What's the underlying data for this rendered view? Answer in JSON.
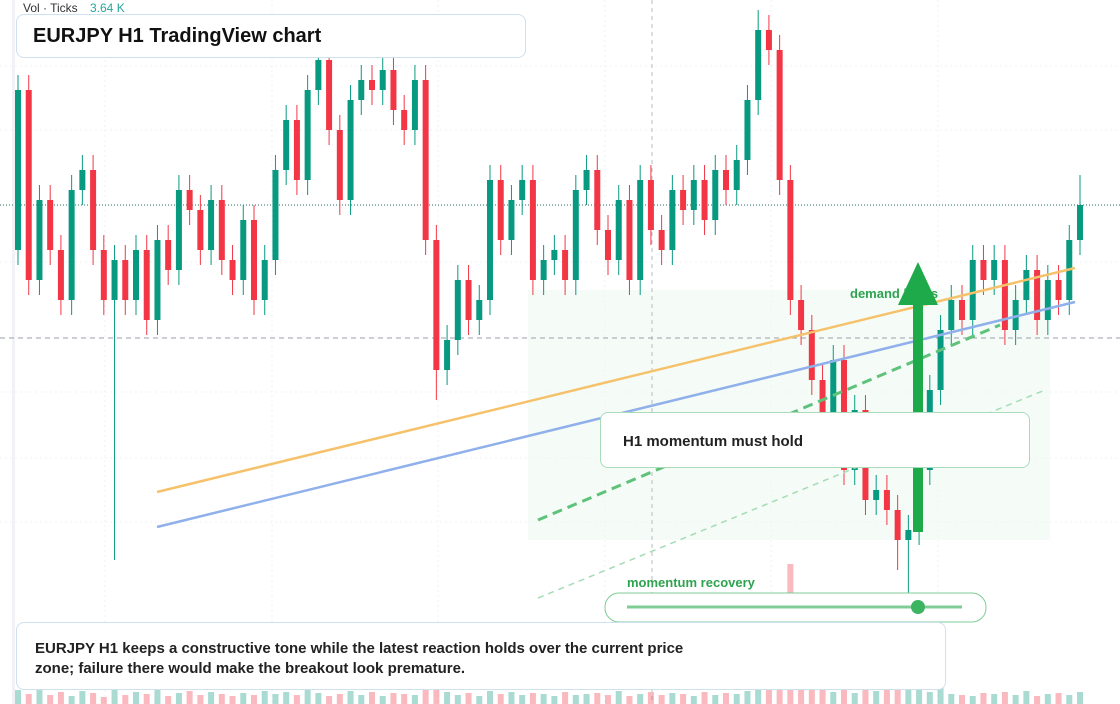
{
  "chart_data": {
    "type": "candlestick",
    "title": "EURJPY H1 TradingView chart",
    "volume_label": "Vol · Ticks",
    "volume_value": "3.64 K",
    "annotations": [
      "demand holds",
      "H1 momentum must hold",
      "momentum recovery"
    ],
    "caption": "EURJPY H1 keeps a constructive tone while the latest reaction holds over the current price zone; failure there would make the breakout look premature.",
    "up_color": "#089981",
    "down_color": "#f23645",
    "ylim": [
      0,
      704
    ],
    "volume_lim": [
      0,
      150
    ],
    "open": [
      454,
      614,
      424,
      504,
      454,
      404,
      514,
      534,
      454,
      404,
      444,
      404,
      454,
      384,
      464,
      434,
      514,
      494,
      454,
      504,
      444,
      424,
      484,
      404,
      444,
      534,
      584,
      524,
      614,
      644,
      574,
      504,
      604,
      624,
      614,
      634,
      594,
      574,
      624,
      464,
      334,
      364,
      424,
      384,
      404,
      524,
      464,
      504,
      524,
      424,
      444,
      454,
      424,
      514,
      534,
      474,
      444,
      504,
      424,
      524,
      474,
      454,
      514,
      494,
      524,
      484,
      534,
      514,
      544,
      604,
      674,
      654,
      524,
      404,
      374,
      324,
      284,
      344,
      234,
      294,
      204,
      214,
      194,
      164,
      174,
      234,
      314,
      374,
      404,
      384,
      444,
      424,
      444,
      374,
      404,
      434,
      384,
      424,
      404,
      464
    ],
    "high": [
      629,
      629,
      519,
      519,
      469,
      529,
      549,
      549,
      469,
      459,
      459,
      469,
      469,
      479,
      479,
      529,
      529,
      509,
      519,
      519,
      459,
      499,
      499,
      459,
      549,
      599,
      599,
      629,
      659,
      659,
      589,
      619,
      639,
      639,
      649,
      649,
      609,
      639,
      639,
      479,
      379,
      439,
      439,
      419,
      539,
      539,
      519,
      539,
      539,
      459,
      469,
      469,
      529,
      549,
      549,
      489,
      519,
      519,
      539,
      539,
      489,
      529,
      529,
      539,
      539,
      549,
      549,
      559,
      619,
      694,
      689,
      669,
      539,
      419,
      389,
      339,
      359,
      359,
      309,
      309,
      229,
      229,
      209,
      189,
      249,
      329,
      389,
      419,
      419,
      459,
      459,
      459,
      459,
      419,
      449,
      449,
      439,
      439,
      479,
      529
    ],
    "low": [
      439,
      409,
      409,
      439,
      389,
      389,
      499,
      439,
      389,
      144,
      389,
      389,
      369,
      369,
      419,
      419,
      479,
      439,
      439,
      429,
      409,
      409,
      389,
      389,
      429,
      519,
      509,
      509,
      599,
      559,
      489,
      489,
      589,
      599,
      599,
      579,
      559,
      559,
      449,
      304,
      319,
      349,
      369,
      369,
      389,
      449,
      449,
      489,
      409,
      409,
      429,
      409,
      409,
      499,
      459,
      429,
      429,
      409,
      409,
      459,
      439,
      439,
      479,
      479,
      469,
      469,
      499,
      499,
      529,
      589,
      639,
      509,
      389,
      359,
      309,
      269,
      269,
      219,
      219,
      189,
      189,
      179,
      134,
      104,
      159,
      219,
      299,
      359,
      369,
      369,
      409,
      409,
      359,
      359,
      389,
      369,
      369,
      389,
      389,
      449
    ],
    "close": [
      614,
      424,
      504,
      454,
      404,
      514,
      534,
      454,
      404,
      444,
      404,
      454,
      384,
      464,
      434,
      514,
      494,
      454,
      504,
      444,
      424,
      484,
      404,
      444,
      534,
      584,
      524,
      614,
      644,
      574,
      504,
      604,
      624,
      614,
      634,
      594,
      574,
      624,
      464,
      334,
      364,
      424,
      384,
      404,
      524,
      464,
      504,
      524,
      424,
      444,
      454,
      424,
      514,
      534,
      474,
      444,
      504,
      424,
      524,
      474,
      454,
      514,
      494,
      524,
      484,
      534,
      514,
      544,
      604,
      674,
      654,
      524,
      404,
      374,
      324,
      284,
      344,
      234,
      294,
      204,
      214,
      194,
      164,
      174,
      234,
      314,
      374,
      404,
      384,
      444,
      424,
      444,
      374,
      404,
      434,
      384,
      424,
      404,
      464,
      499
    ],
    "volume": [
      14,
      10,
      16,
      9,
      12,
      8,
      13,
      11,
      7,
      15,
      9,
      12,
      10,
      14,
      8,
      11,
      13,
      9,
      12,
      10,
      8,
      11,
      9,
      13,
      10,
      12,
      9,
      14,
      11,
      8,
      10,
      13,
      9,
      12,
      8,
      11,
      10,
      9,
      14,
      16,
      12,
      9,
      11,
      8,
      13,
      10,
      12,
      9,
      11,
      10,
      8,
      12,
      9,
      10,
      11,
      9,
      13,
      8,
      10,
      12,
      9,
      11,
      10,
      8,
      12,
      9,
      11,
      10,
      13,
      15,
      18,
      20,
      140,
      22,
      16,
      14,
      12,
      18,
      11,
      15,
      13,
      17,
      24,
      20,
      14,
      12,
      16,
      10,
      9,
      8,
      11,
      10,
      12,
      9,
      13,
      8,
      10,
      11,
      9,
      12
    ]
  }
}
